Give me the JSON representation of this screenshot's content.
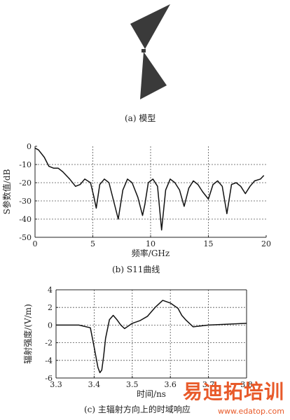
{
  "captions": {
    "a": "(a) 模型",
    "b": "(b) S11曲线",
    "c": "(c) 主辐射方向上的时域响应"
  },
  "watermark": {
    "main": "易迪拓培训",
    "sub": "www.edatop.com"
  },
  "colors": {
    "model_fill": "#3a3a3a",
    "line": "#111111",
    "grid": "#555555"
  },
  "chart_data": [
    {
      "type": "line",
      "xlabel": "频率/GHz",
      "ylabel": "S参数值/dB",
      "xlim": [
        0,
        20
      ],
      "ylim": [
        -50,
        0
      ],
      "xticks": [
        "0",
        "5",
        "10",
        "15",
        "20"
      ],
      "yticks": [
        "0",
        "-10",
        "-20",
        "-30",
        "-40",
        "-50"
      ],
      "grid": true,
      "x": [
        0,
        0.3,
        0.8,
        1.2,
        1.6,
        2.0,
        2.4,
        3.0,
        3.5,
        3.9,
        4.3,
        4.8,
        5.1,
        5.3,
        5.6,
        6.0,
        6.4,
        6.8,
        7.2,
        7.6,
        8.0,
        8.4,
        8.9,
        9.3,
        9.5,
        9.8,
        10.2,
        10.6,
        10.95,
        11.3,
        11.7,
        12.1,
        12.5,
        12.9,
        13.3,
        13.7,
        14.1,
        14.5,
        15.0,
        15.4,
        15.8,
        16.2,
        16.6,
        17.0,
        17.4,
        17.8,
        18.2,
        18.6,
        19.0,
        19.5,
        19.8
      ],
      "y": [
        -1,
        -2,
        -6,
        -11,
        -12,
        -12,
        -14,
        -18,
        -22,
        -21,
        -18,
        -20,
        -28,
        -34,
        -21,
        -18,
        -20,
        -30,
        -40,
        -24,
        -18,
        -20,
        -28,
        -38,
        -32,
        -20,
        -18,
        -22,
        -46,
        -24,
        -18,
        -20,
        -24,
        -33,
        -23,
        -19,
        -21,
        -25,
        -29,
        -21,
        -19,
        -22,
        -37,
        -21,
        -20,
        -22,
        -26,
        -22,
        -19,
        -18,
        -16
      ]
    },
    {
      "type": "line",
      "xlabel": "时间/ns",
      "ylabel": "辐射强度/(V/m)",
      "xlim": [
        3.3,
        3.8
      ],
      "ylim": [
        -6,
        4
      ],
      "xticks": [
        "3.3",
        "3.4",
        "3.5",
        "3.6",
        "3.7",
        "3.8"
      ],
      "yticks": [
        "4",
        "2",
        "0",
        "-2",
        "-4",
        "-6"
      ],
      "grid": true,
      "x": [
        3.3,
        3.36,
        3.39,
        3.4,
        3.41,
        3.415,
        3.42,
        3.425,
        3.43,
        3.44,
        3.45,
        3.46,
        3.47,
        3.48,
        3.5,
        3.52,
        3.54,
        3.56,
        3.58,
        3.6,
        3.62,
        3.63,
        3.64,
        3.66,
        3.7,
        3.75,
        3.8
      ],
      "y": [
        0,
        0,
        -0.3,
        -2.5,
        -4.8,
        -5.4,
        -5.1,
        -3.5,
        -1.5,
        0.6,
        1.1,
        0.6,
        0.0,
        -0.4,
        0.2,
        0.5,
        1.0,
        2.0,
        2.8,
        2.5,
        1.9,
        1.1,
        0.6,
        -0.2,
        0.0,
        0.1,
        0.2
      ]
    }
  ]
}
